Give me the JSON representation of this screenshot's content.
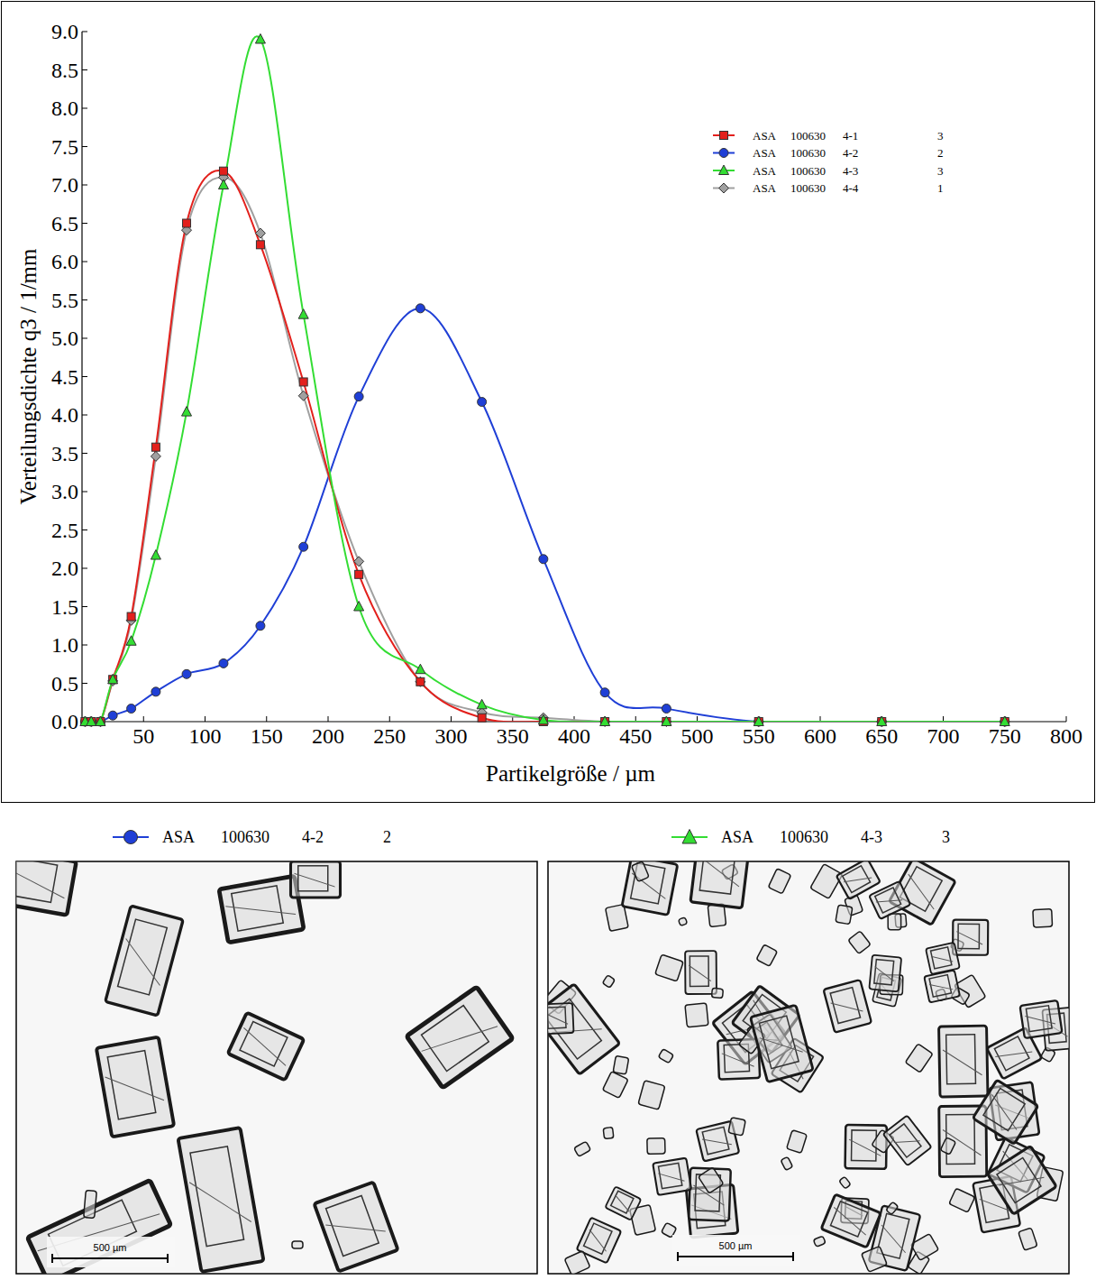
{
  "chart_data": {
    "type": "line",
    "x_label": "Partikelgröße / µm",
    "y_label": "Verteilungsdichte q3 / 1/mm",
    "x": [
      2.5,
      7.5,
      15,
      25,
      40,
      60,
      85,
      115,
      145,
      180,
      225,
      275,
      325,
      375,
      425,
      475,
      550,
      650,
      750
    ],
    "xlim": [
      0,
      800
    ],
    "xticks": [
      50,
      100,
      150,
      200,
      250,
      300,
      350,
      400,
      450,
      500,
      550,
      600,
      650,
      700,
      750,
      800
    ],
    "ylim": [
      0,
      9
    ],
    "yticks": [
      {
        "value": 0,
        "label": "0.0"
      },
      0.5,
      {
        "value": 1,
        "label": "1.0"
      },
      1.5,
      {
        "value": 2,
        "label": "2.0"
      },
      2.5,
      {
        "value": 3,
        "label": "3.0"
      },
      3.5,
      {
        "value": 4,
        "label": "4.0"
      },
      4.5,
      {
        "value": 5,
        "label": "5.0"
      },
      5.5,
      {
        "value": 6,
        "label": "6.0"
      },
      6.5,
      {
        "value": 7,
        "label": "7.0"
      },
      7.5,
      {
        "value": 8,
        "label": "8.0"
      },
      8.5,
      {
        "value": 9,
        "label": "9.0"
      }
    ],
    "grid": false,
    "legend": "upper right",
    "series": [
      {
        "name": "ASA 100630 4-1 3",
        "color": "#e3201c",
        "marker": "square",
        "values": [
          0,
          0,
          0,
          0.55,
          1.37,
          3.58,
          6.5,
          7.18,
          6.22,
          4.43,
          1.92,
          0.52,
          0.05,
          0,
          0,
          0,
          0,
          0,
          0
        ]
      },
      {
        "name": "ASA 100630 4-2 2",
        "color": "#1f3fd6",
        "marker": "circle",
        "values": [
          0,
          0,
          0,
          0.08,
          0.17,
          0.39,
          0.62,
          0.76,
          1.25,
          2.28,
          4.24,
          5.39,
          4.17,
          2.12,
          0.38,
          0.17,
          0,
          0,
          0
        ]
      },
      {
        "name": "ASA 100630 4-3 3",
        "color": "#33dd33",
        "marker": "triangle",
        "values": [
          0,
          0,
          0,
          0.55,
          1.05,
          2.17,
          4.04,
          7.0,
          8.9,
          5.31,
          1.5,
          0.68,
          0.22,
          0.02,
          0,
          0,
          0,
          0,
          0
        ]
      },
      {
        "name": "ASA 100630 4-4 1",
        "color": "#a0a0a0",
        "marker": "diamond",
        "values": [
          0,
          0,
          0,
          0.53,
          1.32,
          3.46,
          6.41,
          7.1,
          6.37,
          4.25,
          2.09,
          0.52,
          0.12,
          0.05,
          0,
          0,
          0,
          0,
          0
        ]
      }
    ]
  },
  "images": [
    {
      "caption": "ASA 100630 4-2 2",
      "scale_bar": "500 µm"
    },
    {
      "caption": "ASA 100630 4-3 3",
      "scale_bar": "500 µm"
    }
  ]
}
